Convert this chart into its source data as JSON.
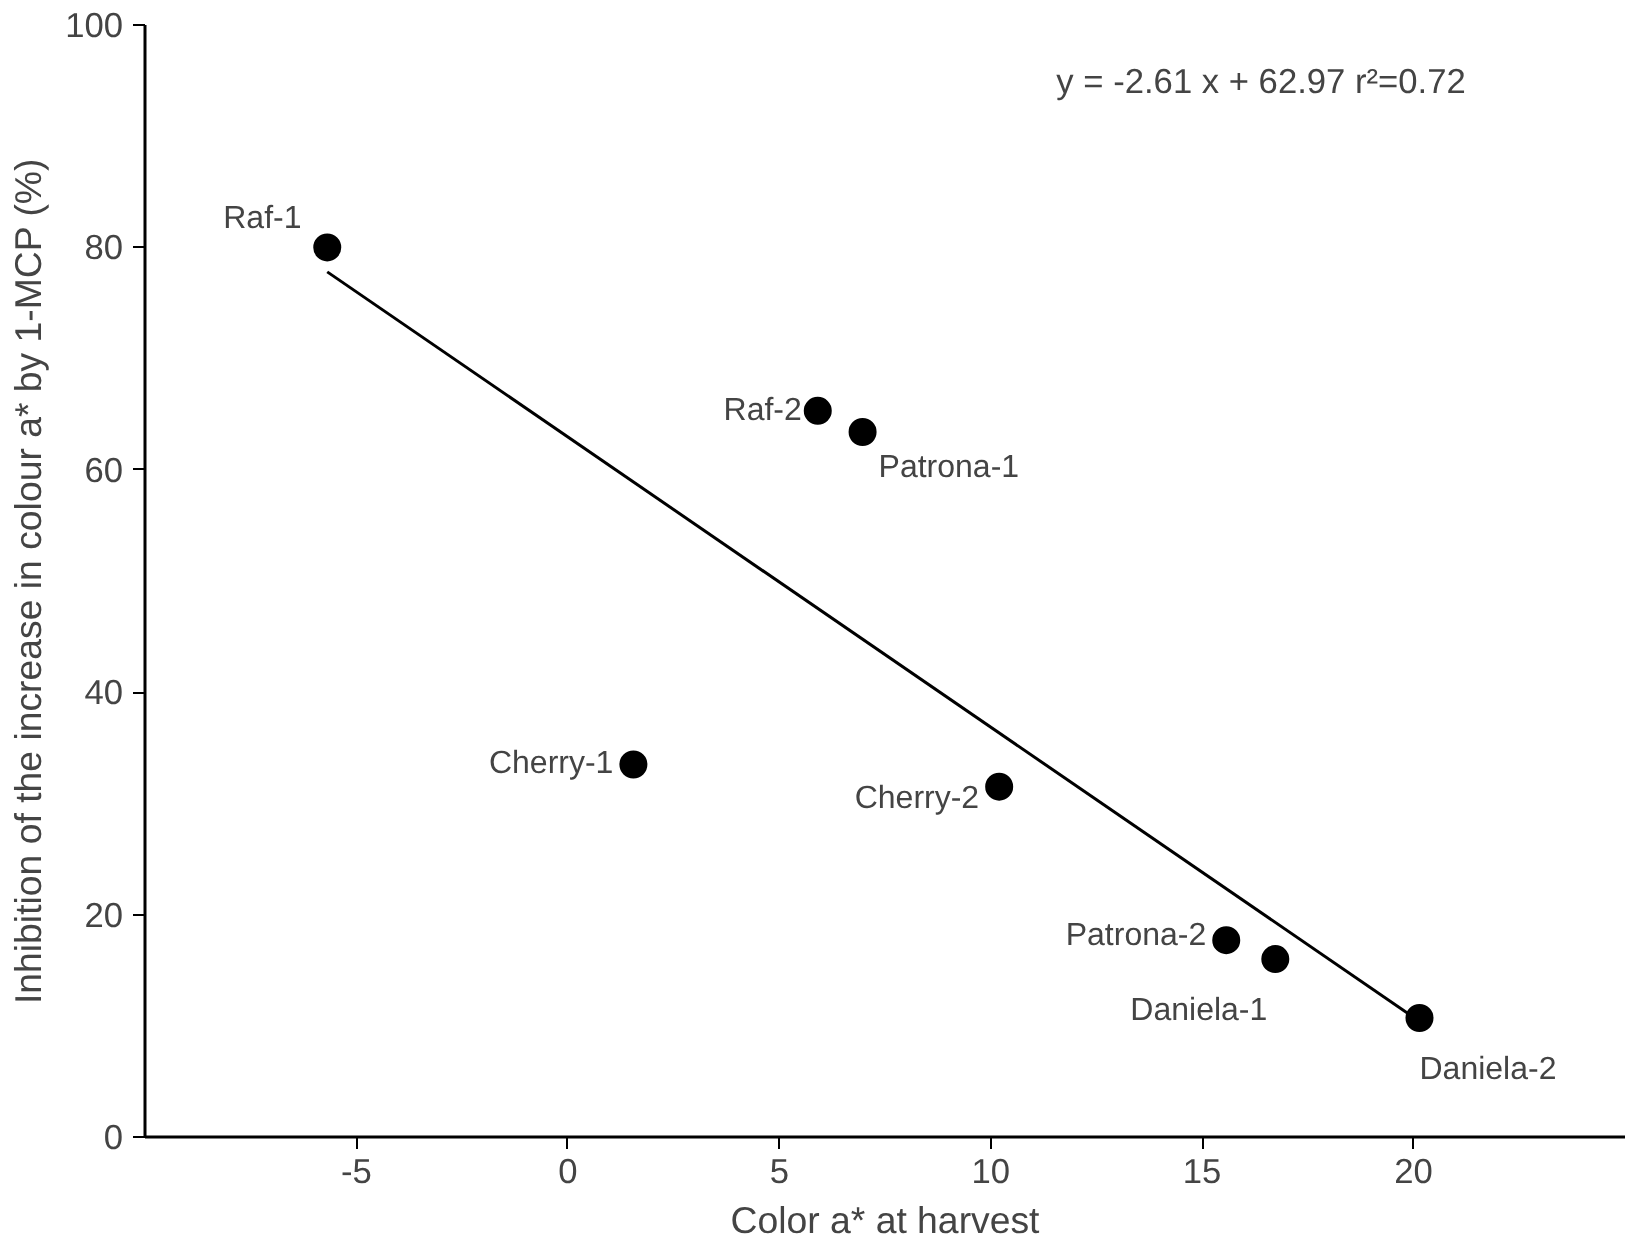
{
  "chart_data": {
    "type": "scatter",
    "xlabel": "Color a* at harvest",
    "ylabel": "Inhibition of the increase in colour a* by 1-MCP (%)",
    "xlim": [
      -10,
      25
    ],
    "xticks": [
      -5,
      0,
      5,
      10,
      15,
      20
    ],
    "ylim": [
      0,
      100
    ],
    "yticks": [
      0,
      20,
      40,
      60,
      80,
      100
    ],
    "grid": false,
    "series": [
      {
        "marker": "circle",
        "color": "#000000",
        "x": [
          -5.69,
          5.91,
          6.97,
          1.55,
          10.2,
          15.57,
          16.73,
          20.14
        ],
        "values": [
          80.0,
          65.3,
          63.4,
          33.5,
          31.5,
          17.7,
          16.0,
          10.7
        ]
      },
      {
        "type": "line",
        "color": "#000000",
        "x": [
          -5.69,
          20.14
        ],
        "values": [
          77.8,
          10.4
        ],
        "marker": "none"
      }
    ],
    "annotations": [
      "y = -2.61 x + 62.97   r²=0.72",
      {
        "text": "Raf-1",
        "x": -5.69,
        "y": 80.0
      },
      {
        "text": "Raf-2",
        "x": 5.91,
        "y": 65.3
      },
      {
        "text": "Patrona-1",
        "x": 6.97,
        "y": 63.4
      },
      {
        "text": "Cherry-1",
        "x": 1.55,
        "y": 33.5
      },
      {
        "text": "Cherry-2",
        "x": 10.2,
        "y": 31.5
      },
      {
        "text": "Patrona-2",
        "x": 15.57,
        "y": 17.7
      },
      {
        "text": "Daniela-1",
        "x": 16.73,
        "y": 16.0
      },
      {
        "text": "Daniela-2",
        "x": 20.14,
        "y": 10.7
      }
    ]
  }
}
